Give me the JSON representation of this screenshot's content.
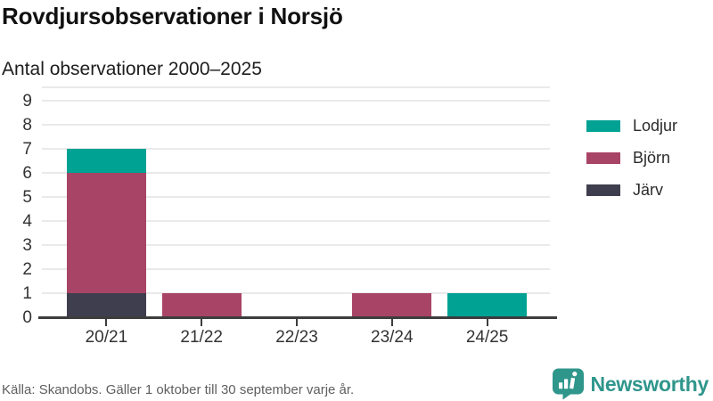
{
  "title": "Rovdjursobservationer i Norsjö",
  "subtitle": "Antal observationer 2000–2025",
  "footer": {
    "source": "Källa: Skandobs. Gäller 1 oktober till 30 september varje år.",
    "brand": "Newsworthy"
  },
  "colors": {
    "lodjur_teal": "#00a294",
    "bjorn_maroon": "#a84465",
    "jarv_dark": "#3f3e4e",
    "brand_teal": "#2f968c",
    "gridline": "#eaeaea",
    "axis": "#3d3d3d",
    "axis_label": "#333333"
  },
  "chart_data": {
    "type": "bar",
    "stacked": true,
    "title": "Rovdjursobservationer i Norsjö",
    "subtitle": "Antal observationer 2000–2025",
    "categories": [
      "20/21",
      "21/22",
      "22/23",
      "23/24",
      "24/25"
    ],
    "series": [
      {
        "name": "Lodjur",
        "color": "#00a294",
        "values": [
          1,
          0,
          0,
          0,
          1
        ]
      },
      {
        "name": "Björn",
        "color": "#a84465",
        "values": [
          5,
          1,
          0,
          1,
          0
        ]
      },
      {
        "name": "Järv",
        "color": "#3f3e4e",
        "values": [
          1,
          0,
          0,
          0,
          0
        ]
      }
    ],
    "stack_order_bottom_to_top": [
      "Järv",
      "Björn",
      "Lodjur"
    ],
    "totals": [
      7,
      1,
      0,
      1,
      1
    ],
    "xlabel": "",
    "ylabel": "",
    "ylim": [
      0,
      9.6
    ],
    "yticks": [
      0,
      1,
      2,
      3,
      4,
      5,
      6,
      7,
      8,
      9
    ],
    "grid": true,
    "legend_position": "right"
  },
  "legend": [
    {
      "label": "Lodjur",
      "color": "#00a294"
    },
    {
      "label": "Björn",
      "color": "#a84465"
    },
    {
      "label": "Järv",
      "color": "#3f3e4e"
    }
  ]
}
